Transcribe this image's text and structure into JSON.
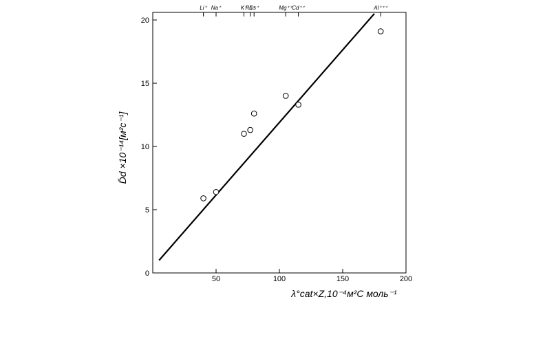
{
  "chart_data": {
    "type": "scatter",
    "x_label": "λ°cat×Z,10⁻⁴м²С моль⁻¹",
    "y_label": "D̄d ×10⁻¹⁴[м²с⁻¹]",
    "x": [
      40,
      50,
      72,
      77,
      80,
      105,
      115,
      180
    ],
    "values": [
      5.9,
      6.4,
      11.0,
      11.3,
      12.6,
      14.0,
      13.3,
      19.1
    ],
    "line": {
      "x": [
        5,
        175
      ],
      "values": [
        1.0,
        20.5
      ]
    },
    "xlim": [
      0,
      200
    ],
    "ylim": [
      0,
      20.6
    ],
    "xticks": [
      50,
      100,
      150,
      200
    ],
    "yticks": [
      0,
      5,
      10,
      15,
      20
    ],
    "x2ticks": [
      {
        "value": 40,
        "label": "Li⁺"
      },
      {
        "value": 50,
        "label": "Na⁺"
      },
      {
        "value": 72,
        "label": "K⁺"
      },
      {
        "value": 77,
        "label": "Rb⁺"
      },
      {
        "value": 80,
        "label": "Cs⁺"
      },
      {
        "value": 105,
        "label": "Mg⁺⁺"
      },
      {
        "value": 115,
        "label": "Cd⁺⁺"
      },
      {
        "value": 180,
        "label": "Al⁺⁺⁺"
      }
    ]
  }
}
